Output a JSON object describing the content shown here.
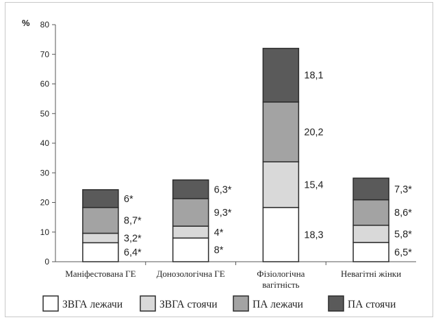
{
  "chart_data": {
    "type": "bar",
    "stacked": true,
    "ylabel": "%",
    "ylim": [
      0,
      80
    ],
    "yticks": [
      "0",
      "10",
      "20",
      "30",
      "40",
      "50",
      "60",
      "70",
      "80"
    ],
    "grid": false,
    "legend_position": "bottom",
    "categories": [
      "Маніфестована ГЕ",
      "Донозологічна ГЕ",
      "Фізіологічна вагітність",
      "Невагітні жінки"
    ],
    "series": [
      {
        "name": "ЗВГА лежачи",
        "color": "#ffffff",
        "values": [
          6.4,
          8,
          18.3,
          6.5
        ],
        "labels": [
          "6,4*",
          "8*",
          "18,3",
          "6,5*"
        ]
      },
      {
        "name": "ЗВГА стоячи",
        "color": "#d9d9d9",
        "values": [
          3.2,
          4,
          15.4,
          5.8
        ],
        "labels": [
          "3,2*",
          "4*",
          "15,4",
          "5,8*"
        ]
      },
      {
        "name": "ПА лежачи",
        "color": "#a3a3a3",
        "values": [
          8.7,
          9.3,
          20.2,
          8.6
        ],
        "labels": [
          "8,7*",
          "9,3*",
          "20,2",
          "8,6*"
        ]
      },
      {
        "name": "ПА стоячи",
        "color": "#5a5a5a",
        "values": [
          6,
          6.3,
          18.1,
          7.3
        ],
        "labels": [
          "6*",
          "6,3*",
          "18,1",
          "7,3*"
        ]
      }
    ]
  }
}
